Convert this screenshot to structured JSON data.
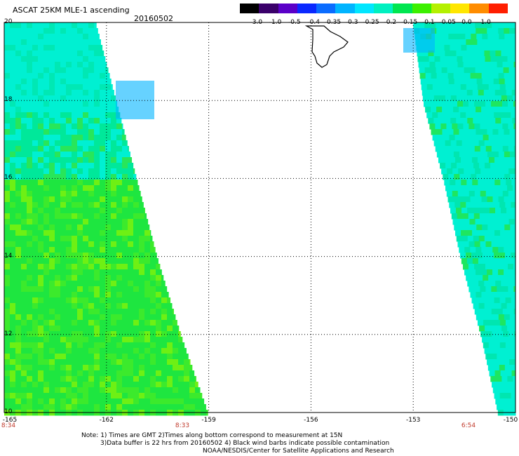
{
  "title": "ASCAT 25KM MLE-1 ascending",
  "date": "20160502",
  "colorbar": {
    "labels": [
      "-3.0",
      "-1.0",
      "-0.5",
      "-0.4",
      "-0.35",
      "-0.3",
      "-0.25",
      "-0.2",
      "-0.15",
      "-0.1",
      "-0.05",
      "0.0",
      "1.0"
    ],
    "colors": [
      "#000000",
      "#3a006a",
      "#5a00c8",
      "#0a28ff",
      "#0a6cff",
      "#00b4ff",
      "#00e6ff",
      "#00f0c0",
      "#00e650",
      "#3cf000",
      "#b4f000",
      "#ffe600",
      "#ff8c00",
      "#ff1e00"
    ]
  },
  "y_axis": {
    "labels": [
      "20",
      "18",
      "16",
      "14",
      "12",
      "10"
    ]
  },
  "x_axis": {
    "labels": [
      "-165",
      "-162",
      "-159",
      "-156",
      "-153",
      "-150"
    ]
  },
  "time_labels": [
    "8:34",
    "8:33",
    "6:54"
  ],
  "notes": {
    "line1": "Note: 1) Times are GMT 2)Times along bottom correspond to measurement at 15N",
    "line2": "3)Data buffer is 22 hrs from 20160502 4) Black wind barbs indicate possible contamination",
    "line3": "NOAA/NESDIS/Center for Satellite Applications and Research"
  },
  "colors": {
    "swath_cyan": "#00f0d2",
    "swath_green": "#1ee640",
    "time_label": "#c0392b",
    "grid": "#000000"
  },
  "map_data": {
    "lon_range": [
      -165,
      -150
    ],
    "lat_range": [
      10,
      20
    ],
    "swath_west_east_edge": [
      [
        20,
        -162.3
      ],
      [
        18,
        -161.7
      ],
      [
        16,
        -161.1
      ],
      [
        14,
        -160.5
      ],
      [
        12,
        -159.8
      ],
      [
        10,
        -159.0
      ]
    ],
    "swath_east_west_edge": [
      [
        20,
        -153.0
      ],
      [
        18,
        -152.7
      ],
      [
        16,
        -152.1
      ],
      [
        14,
        -151.6
      ],
      [
        12,
        -151.0
      ],
      [
        10,
        -150.5
      ]
    ]
  }
}
